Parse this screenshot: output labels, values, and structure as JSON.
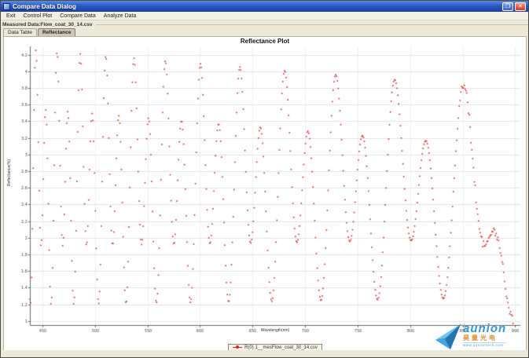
{
  "window": {
    "title": "Compare Data Dialog",
    "maximize_glyph": "❐",
    "close_glyph": "✕"
  },
  "menu": {
    "items": [
      "Exit",
      "Control Plot",
      "Compare Data",
      "Analyze Data"
    ]
  },
  "measured_data": {
    "label": "Measured Data:Flow_coat_30_14.csv"
  },
  "tabs": [
    {
      "label": "Data Table",
      "active": false
    },
    {
      "label": "Reflectance",
      "active": true
    }
  ],
  "chart_data": {
    "type": "scatter",
    "title": "Reflectance Plot",
    "xlabel": "Wavelength(nm)",
    "ylabel": "Reflectance(%)",
    "xlim": [
      438,
      905
    ],
    "ylim": [
      0.95,
      4.3
    ],
    "x_ticks": [
      450,
      500,
      550,
      600,
      650,
      700,
      750,
      800,
      850,
      900
    ],
    "y_ticks": [
      4.2,
      4.0,
      3.8,
      3.6,
      3.4,
      3.2,
      3.0,
      2.8,
      2.6,
      2.4,
      2.2,
      2.0,
      1.8,
      1.6,
      1.4,
      1.2,
      1.0
    ],
    "grid": true,
    "legend": {
      "position": "bottom",
      "entries": [
        {
          "label": "R(0) 1__mesFlow_coat_30_14.csv",
          "color": "#dd2222",
          "marker": "dot-line"
        }
      ]
    },
    "series": [
      {
        "name": "R(0) 1__mesFlow_coat_30_14.csv",
        "color": "#dd2222",
        "style": "dotted-markers",
        "model": "two_layer_thin_film_interference",
        "params": {
          "base0": 2.72,
          "base_slope_per_nm": -0.00042,
          "amp1_0": 1.16,
          "amp1_slope_per_nm": -0.00062,
          "amp1_min": 0.72,
          "amp2": 0.5,
          "phase2_offset_rad": 0.785,
          "optical_thickness_nm": 20400,
          "sample_step_nm": 0.8,
          "noise_start_nm": 835,
          "noise_amp": 0.06,
          "drop_start_nm": 868,
          "drop_end_nm": 898,
          "end_value": 0.98
        },
        "extrema_approx": [
          [
            453,
            3.5
          ],
          [
            459,
            1.25
          ],
          [
            464,
            4.2
          ],
          [
            470,
            1.9
          ],
          [
            475,
            3.5
          ],
          [
            480,
            1.25
          ],
          [
            486,
            4.2
          ],
          [
            492,
            1.95
          ],
          [
            498,
            3.45
          ],
          [
            504,
            1.25
          ],
          [
            510,
            4.2
          ],
          [
            517,
            1.95
          ],
          [
            523,
            3.45
          ],
          [
            530,
            1.3
          ],
          [
            537,
            4.15
          ],
          [
            544,
            2.0
          ],
          [
            551,
            3.4
          ],
          [
            559,
            1.3
          ],
          [
            567,
            4.1
          ],
          [
            575,
            2.0
          ],
          [
            583,
            3.4
          ],
          [
            591,
            1.35
          ],
          [
            600,
            4.05
          ],
          [
            609,
            2.05
          ],
          [
            618,
            3.35
          ],
          [
            627,
            1.4
          ],
          [
            638,
            4.0
          ],
          [
            648,
            2.1
          ],
          [
            658,
            3.3
          ],
          [
            668,
            1.45
          ],
          [
            680,
            3.9
          ],
          [
            692,
            2.15
          ],
          [
            704,
            3.2
          ],
          [
            716,
            1.25
          ],
          [
            729,
            3.8
          ],
          [
            742,
            2.2
          ],
          [
            755,
            3.1
          ],
          [
            770,
            1.25
          ],
          [
            785,
            3.65
          ],
          [
            800,
            2.3
          ],
          [
            815,
            2.95
          ],
          [
            832,
            1.5
          ],
          [
            850,
            3.6
          ],
          [
            865,
            2.9
          ],
          [
            880,
            1.8
          ],
          [
            898,
            1.0
          ]
        ]
      }
    ]
  },
  "watermark": {
    "brand": "aunion",
    "brand_cn": "昊量光电",
    "url": "www.auniontech.com"
  },
  "colors": {
    "curve_red": "#dd2222",
    "grid_h": "#e2e2e2",
    "grid_v": "#efefef",
    "axis": "#666666",
    "tick_text": "#444444",
    "titlebar_blue": "#2a5ac4"
  }
}
